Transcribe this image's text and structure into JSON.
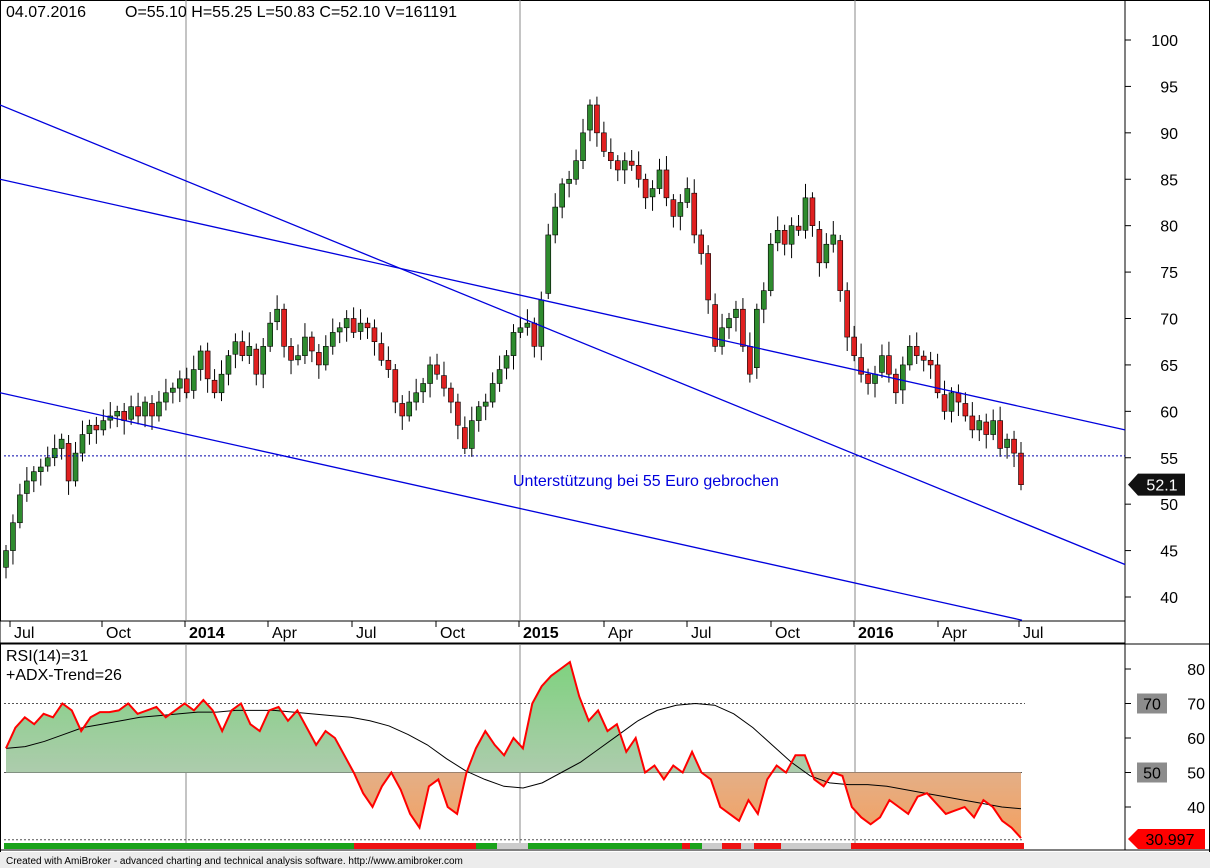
{
  "header": {
    "date": "04.07.2016",
    "ohlcv": "O=55.10  H=55.25  L=50.83  C=52.10  V=161191"
  },
  "annotation": "Unterstützung bei 55 Euro gebrochen",
  "last_price_label": "52.1",
  "time_axis_labels": [
    "Jul",
    "Oct",
    "2014",
    "Apr",
    "Jul",
    "Oct",
    "2015",
    "Apr",
    "Jul",
    "Oct",
    "2016",
    "Apr",
    "Jul"
  ],
  "rsi_panel": {
    "title_rsi": "RSI(14)=31",
    "title_adx": "+ADX-Trend=26",
    "badge_70": "70",
    "badge_50": "50",
    "last_value_label": "30.997"
  },
  "footer": "Created with AmiBroker - advanced charting and technical analysis software. http://www.amibroker.com",
  "colors": {
    "up_candle": "#2e8b2e",
    "down_candle": "#e02020",
    "channel": "#0000dd",
    "rsi_line": "#ff0000",
    "rsi_fill_top": "#7fd27f",
    "rsi_fill_bottom": "#f4a060",
    "grid": "#888888"
  },
  "chart_data": [
    {
      "type": "candlestick",
      "title": "",
      "ylim": [
        36,
        103
      ],
      "yticks": [
        40,
        45,
        50,
        55,
        60,
        65,
        70,
        75,
        80,
        85,
        90,
        95,
        100
      ],
      "support_level": 55.2,
      "last_close": 52.1,
      "x_label_dates": [
        "2013-07",
        "2013-10",
        "2014-01",
        "2014-04",
        "2014-07",
        "2014-10",
        "2015-01",
        "2015-04",
        "2015-07",
        "2015-10",
        "2016-01",
        "2016-04",
        "2016-07"
      ],
      "weekly_closes": [
        45,
        48,
        51,
        52.5,
        53.5,
        54,
        55,
        56,
        57,
        52.5,
        55.5,
        57.5,
        58.5,
        58,
        59,
        59.5,
        60,
        59,
        60.5,
        59.5,
        61,
        59.5,
        61,
        62,
        62.5,
        63.5,
        62,
        64.5,
        66.5,
        63.5,
        62,
        64,
        66,
        67.5,
        66,
        67,
        64,
        67,
        69.5,
        71,
        67,
        65.5,
        66,
        68,
        66.5,
        65,
        67,
        68.5,
        69,
        70,
        68.5,
        69.5,
        69,
        67.5,
        65.5,
        64.5,
        61,
        59.5,
        61,
        62,
        63,
        65,
        64,
        62.5,
        61,
        58.5,
        56,
        59,
        60.5,
        61,
        63,
        64.5,
        66,
        68.5,
        69,
        69.5,
        67,
        72,
        79,
        82,
        84.5,
        85,
        87,
        90,
        93,
        90,
        88,
        87,
        86,
        87,
        86.5,
        85,
        83,
        84,
        86,
        83,
        81,
        82.5,
        84,
        79,
        77,
        72,
        67,
        69,
        70,
        71,
        67,
        64,
        71,
        73,
        78,
        79.5,
        78,
        80,
        79.5,
        83,
        80,
        76,
        78,
        79,
        73,
        68,
        66,
        64,
        63,
        64,
        66,
        64,
        62,
        65,
        67,
        66,
        65.5,
        65,
        62,
        60,
        62,
        61,
        59.5,
        58,
        59,
        57.5,
        59,
        56,
        57,
        55.5,
        52.1
      ],
      "channel_middle": {
        "from": {
          "date": "2015-03",
          "y": 93
        },
        "to": {
          "date": "2016-08",
          "y": 43.5
        }
      },
      "channel_upper": {
        "from": {
          "date": "2015-11",
          "y": 85
        },
        "to": {
          "date": "2016-08",
          "y": 58
        }
      },
      "channel_lower": {
        "from": {
          "date": "2015-09",
          "y": 62
        },
        "to": {
          "date": "2016-07",
          "y": 37.5
        }
      }
    },
    {
      "type": "area",
      "title": "RSI(14)",
      "ylim": [
        31,
        83
      ],
      "yticks": [
        40,
        50,
        60,
        70,
        80
      ],
      "reference_lines": [
        70,
        50
      ],
      "series": [
        {
          "name": "RSI(14)",
          "values": [
            57,
            63,
            66,
            64,
            67,
            66,
            70,
            68,
            62,
            66,
            67.5,
            67.5,
            68,
            70,
            67,
            68,
            69,
            66,
            68,
            70,
            68,
            71,
            68,
            62,
            68,
            70,
            64,
            62,
            68,
            69,
            65,
            68,
            63,
            58,
            62,
            60,
            55,
            50,
            44,
            40,
            46,
            50,
            45,
            38,
            34,
            46,
            48,
            40,
            38,
            50,
            57,
            62,
            58,
            55,
            60,
            57,
            70,
            75,
            78,
            80,
            82,
            72,
            65,
            68,
            62,
            64,
            56,
            60,
            50,
            52,
            48,
            52,
            50,
            56,
            50,
            48,
            40,
            38,
            36,
            42,
            38,
            48,
            52,
            50,
            55,
            55,
            48,
            46,
            50,
            49,
            40,
            37,
            35,
            37,
            42,
            40,
            38,
            43,
            44,
            41,
            38,
            39,
            40,
            37,
            42,
            40,
            36,
            34,
            31
          ]
        },
        {
          "name": "+ADX-Trend",
          "values": [
            57,
            57.5,
            59,
            61,
            63,
            64,
            65,
            66,
            66.5,
            67,
            67.5,
            67.5,
            68,
            68,
            68,
            67.5,
            67,
            66.5,
            66,
            65,
            63.5,
            61,
            58,
            54,
            50.5,
            48,
            46,
            45.5,
            47,
            50,
            53,
            57,
            61,
            65,
            68,
            69.5,
            70,
            69.5,
            67,
            63,
            58,
            53,
            49,
            47,
            46.5,
            46.5,
            46,
            45,
            44,
            43,
            42,
            41,
            40,
            39.5
          ]
        }
      ]
    }
  ]
}
